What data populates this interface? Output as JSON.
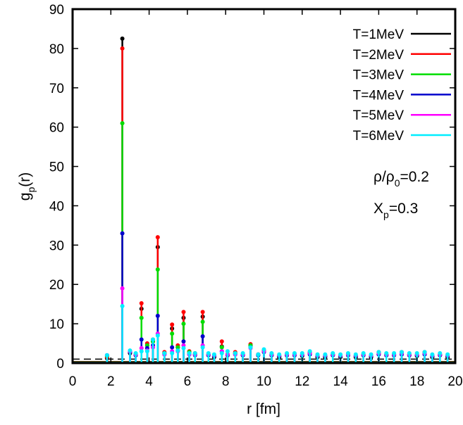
{
  "chart_data": {
    "type": "line",
    "xlabel": "r [fm]",
    "ylabel": {
      "main": "g",
      "sub": "p",
      "tail": "(r)"
    },
    "xlim": [
      0,
      20
    ],
    "ylim": [
      0,
      90
    ],
    "xticks": [
      0,
      2,
      4,
      6,
      8,
      10,
      12,
      14,
      16,
      18,
      20
    ],
    "yticks": [
      0,
      10,
      20,
      30,
      40,
      50,
      60,
      70,
      80,
      90
    ],
    "grid": false,
    "legend_position": "top-right",
    "annotations": [
      {
        "parts": [
          [
            "ρ/ρ",
            ""
          ],
          [
            "0",
            "sub"
          ],
          [
            "=0.2",
            ""
          ]
        ]
      },
      {
        "parts": [
          [
            "X",
            ""
          ],
          [
            "p",
            "sub"
          ],
          [
            "=0.3",
            ""
          ]
        ]
      }
    ],
    "x": [
      1.8,
      2.6,
      3.0,
      3.3,
      3.6,
      3.9,
      4.2,
      4.45,
      4.8,
      5.2,
      5.5,
      5.8,
      6.1,
      6.4,
      6.8,
      7.1,
      7.4,
      7.8,
      8.1,
      8.5,
      8.9,
      9.3,
      9.7,
      10.0,
      10.4,
      10.8,
      11.2,
      11.6,
      12.0,
      12.4,
      12.8,
      13.2,
      13.6,
      14.0,
      14.4,
      14.8,
      15.2,
      15.6,
      16.0,
      16.4,
      16.8,
      17.2,
      17.6,
      18.0,
      18.4,
      18.8,
      19.2,
      19.6
    ],
    "series": [
      {
        "name": "T=1MeV",
        "color": "#000000",
        "values": [
          1.2,
          82.5,
          2.5,
          2.0,
          13.8,
          4.5,
          5.5,
          29.5,
          2.5,
          8.8,
          4.0,
          11.5,
          2.5,
          2.2,
          11.8,
          2.0,
          1.5,
          4.2,
          2.0,
          2.5,
          2.0,
          4.5,
          2.0,
          3.0,
          2.0,
          1.5,
          2.0,
          2.0,
          1.8,
          2.5,
          1.5,
          1.5,
          2.0,
          1.5,
          2.0,
          1.5,
          2.0,
          1.5,
          2.5,
          2.0,
          2.0,
          2.5,
          2.0,
          1.8,
          2.5,
          1.5,
          2.0,
          1.5
        ]
      },
      {
        "name": "T=2MeV",
        "color": "#ff0000",
        "values": [
          1.5,
          80.0,
          2.8,
          2.2,
          15.2,
          5.0,
          6.0,
          32.0,
          2.8,
          9.8,
          4.5,
          13.0,
          3.0,
          2.5,
          13.0,
          2.2,
          1.8,
          5.5,
          2.2,
          2.8,
          2.2,
          4.8,
          2.2,
          3.2,
          2.2,
          1.8,
          2.2,
          2.2,
          2.0,
          2.8,
          1.8,
          1.8,
          2.2,
          1.8,
          2.2,
          1.8,
          2.2,
          1.8,
          2.8,
          2.2,
          2.2,
          2.8,
          2.2,
          2.0,
          2.8,
          1.8,
          2.2,
          1.8
        ]
      },
      {
        "name": "T=3MeV",
        "color": "#00dd00",
        "values": [
          1.8,
          61.0,
          2.8,
          2.2,
          11.5,
          4.5,
          5.5,
          23.8,
          2.5,
          7.5,
          4.0,
          10.0,
          2.8,
          2.2,
          10.5,
          2.2,
          1.8,
          4.0,
          2.2,
          2.5,
          2.2,
          4.5,
          2.2,
          3.0,
          2.2,
          1.8,
          2.2,
          2.2,
          2.0,
          2.5,
          1.8,
          1.8,
          2.2,
          1.8,
          2.2,
          1.8,
          2.2,
          1.8,
          2.5,
          2.2,
          2.2,
          2.5,
          2.2,
          2.0,
          2.5,
          1.8,
          2.2,
          1.8
        ]
      },
      {
        "name": "T=4MeV",
        "color": "#0000cc",
        "values": [
          2.0,
          33.0,
          2.8,
          2.0,
          6.0,
          3.8,
          4.5,
          12.0,
          2.2,
          4.0,
          3.2,
          5.5,
          2.2,
          2.0,
          6.8,
          2.0,
          1.8,
          3.0,
          2.0,
          2.2,
          2.0,
          4.0,
          2.0,
          2.8,
          2.0,
          1.8,
          2.0,
          2.0,
          2.0,
          2.2,
          1.8,
          1.8,
          2.0,
          1.8,
          2.0,
          1.8,
          2.0,
          1.8,
          2.2,
          2.0,
          2.0,
          2.2,
          2.0,
          2.0,
          2.2,
          1.8,
          2.0,
          1.8
        ]
      },
      {
        "name": "T=5MeV",
        "color": "#ff00ff",
        "values": [
          2.0,
          19.0,
          3.0,
          2.2,
          3.8,
          3.2,
          4.0,
          7.5,
          2.2,
          3.0,
          3.0,
          4.5,
          2.2,
          2.2,
          4.5,
          2.2,
          2.0,
          3.0,
          2.2,
          2.2,
          2.2,
          3.8,
          2.2,
          3.0,
          2.2,
          2.0,
          2.2,
          2.2,
          2.2,
          2.5,
          2.0,
          2.0,
          2.2,
          2.0,
          2.2,
          2.0,
          2.2,
          2.0,
          2.5,
          2.2,
          2.2,
          2.5,
          2.2,
          2.2,
          2.5,
          2.0,
          2.2,
          2.0
        ]
      },
      {
        "name": "T=6MeV",
        "color": "#00eeff",
        "values": [
          2.0,
          14.5,
          3.2,
          2.5,
          3.0,
          3.0,
          6.0,
          7.0,
          2.5,
          2.5,
          3.2,
          3.8,
          2.5,
          2.5,
          4.0,
          2.5,
          2.2,
          2.5,
          3.0,
          2.5,
          2.5,
          4.0,
          2.2,
          3.5,
          2.5,
          2.2,
          2.5,
          2.5,
          2.5,
          3.0,
          2.2,
          2.2,
          2.5,
          2.2,
          2.5,
          2.2,
          2.5,
          2.2,
          2.8,
          2.5,
          2.5,
          2.8,
          2.5,
          2.5,
          2.8,
          2.2,
          2.5,
          2.2
        ]
      }
    ]
  }
}
